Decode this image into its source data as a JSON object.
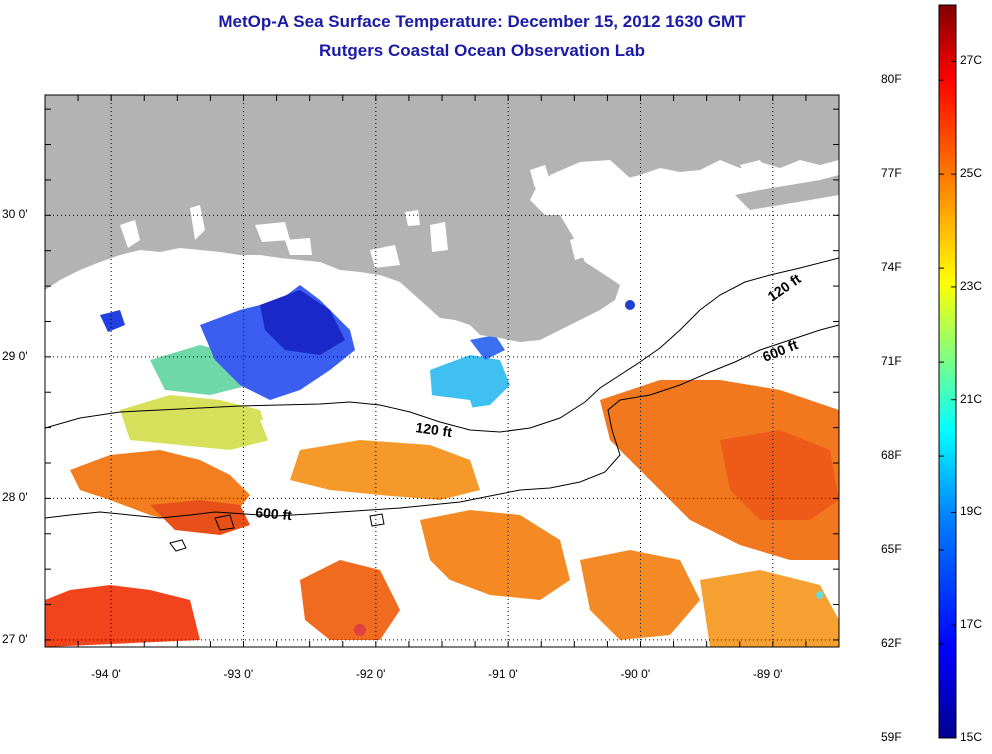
{
  "title": "MetOp-A Sea Surface Temperature:  December 15, 2012 1630 GMT",
  "subtitle": "Rutgers Coastal Ocean Observation Lab",
  "map": {
    "longitude_range": [
      -94.5,
      -88.5
    ],
    "latitude_range": [
      26.95,
      30.85
    ],
    "lon_ticks": [
      {
        "value": -94,
        "label": "-94 0'"
      },
      {
        "value": -93,
        "label": "-93 0'"
      },
      {
        "value": -92,
        "label": "-92 0'"
      },
      {
        "value": -91,
        "label": "-91 0'"
      },
      {
        "value": -90,
        "label": "-90 0'"
      },
      {
        "value": -89,
        "label": "-89 0'"
      }
    ],
    "lat_ticks": [
      {
        "value": 27,
        "label": "27 0'"
      },
      {
        "value": 28,
        "label": "28 0'"
      },
      {
        "value": 29,
        "label": "29 0'"
      },
      {
        "value": 30,
        "label": "30 0'"
      }
    ],
    "contour_labels": [
      {
        "label": "120 ft",
        "depth": "120 ft"
      },
      {
        "label": "600 ft",
        "depth": "600 ft"
      },
      {
        "label": "120 ft",
        "depth": "120 ft"
      },
      {
        "label": "600 ft",
        "depth": "600 ft"
      }
    ],
    "land_color": "#b3b3b3",
    "no_data_color": "#ffffff"
  },
  "colorbar": {
    "fahrenheit_labels": [
      "80F",
      "77F",
      "74F",
      "71F",
      "68F",
      "65F",
      "62F",
      "59F"
    ],
    "celsius_labels": [
      "27C",
      "25C",
      "23C",
      "21C",
      "19C",
      "17C",
      "15C"
    ],
    "range_celsius": [
      15,
      28
    ],
    "colors": [
      "#00008f",
      "#0000ff",
      "#0080ff",
      "#00ffff",
      "#80ff80",
      "#ffff00",
      "#ff8000",
      "#ff0000",
      "#800000"
    ]
  }
}
